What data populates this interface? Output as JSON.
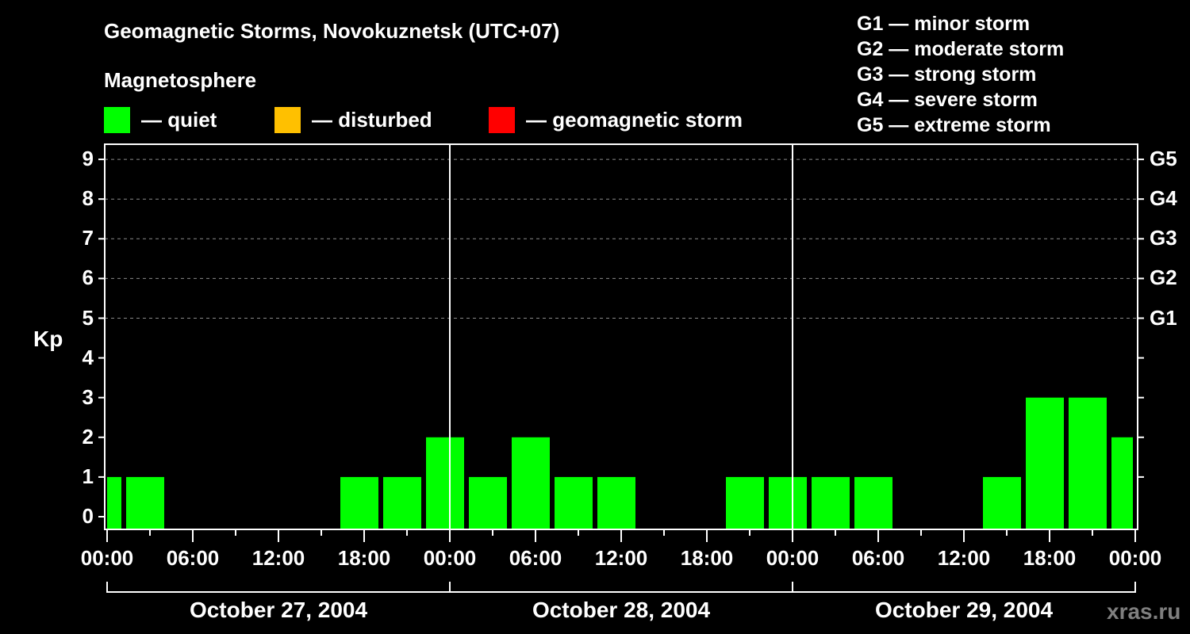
{
  "header": {
    "title": "Geomagnetic Storms, Novokuznetsk (UTC+07)",
    "subtitle": "Magnetosphere"
  },
  "legend": [
    {
      "label": "— quiet",
      "color": "#00ff00"
    },
    {
      "label": "— disturbed",
      "color": "#ffc000"
    },
    {
      "label": "— geomagnetic storm",
      "color": "#ff0000"
    }
  ],
  "g_scale": [
    "G1 — minor storm",
    "G2 — moderate storm",
    "G3 — strong storm",
    "G4 — severe storm",
    "G5 — extreme storm"
  ],
  "watermark": "xras.ru",
  "chart_data": {
    "type": "bar",
    "title": "Geomagnetic Storms, Novokuznetsk (UTC+07)",
    "subtitle": "Magnetosphere",
    "ylabel": "Kp",
    "xlabel": "",
    "ylim": [
      0,
      9
    ],
    "yticks": [
      "0",
      "1",
      "2",
      "3",
      "4",
      "5",
      "6",
      "7",
      "8",
      "9"
    ],
    "right_ticks": [
      {
        "kp": 5,
        "label": "G1"
      },
      {
        "kp": 6,
        "label": "G2"
      },
      {
        "kp": 7,
        "label": "G3"
      },
      {
        "kp": 8,
        "label": "G4"
      },
      {
        "kp": 9,
        "label": "G5"
      }
    ],
    "xticks": [
      "00:00",
      "06:00",
      "12:00",
      "18:00",
      "00:00",
      "06:00",
      "12:00",
      "18:00",
      "00:00",
      "06:00",
      "12:00",
      "18:00",
      "00:00"
    ],
    "dates": [
      "October 27, 2004",
      "October 28, 2004",
      "October 29, 2004"
    ],
    "grid": "dashed horizontal at Kp 5-9",
    "legend_position": "top",
    "bar_interval_hours": 3,
    "series": [
      {
        "name": "Kp",
        "categories": [
          "Oct 26 22:00",
          "Oct 27 01:00",
          "Oct 27 04:00",
          "Oct 27 07:00",
          "Oct 27 10:00",
          "Oct 27 13:00",
          "Oct 27 16:00",
          "Oct 27 19:00",
          "Oct 27 22:00",
          "Oct 28 01:00",
          "Oct 28 04:00",
          "Oct 28 07:00",
          "Oct 28 10:00",
          "Oct 28 13:00",
          "Oct 28 16:00",
          "Oct 28 19:00",
          "Oct 28 22:00",
          "Oct 29 01:00",
          "Oct 29 04:00",
          "Oct 29 07:00",
          "Oct 29 10:00",
          "Oct 29 13:00",
          "Oct 29 16:00",
          "Oct 29 19:00",
          "Oct 29 22:00"
        ],
        "values": [
          1,
          1,
          0,
          0,
          0,
          0,
          1,
          1,
          2,
          1,
          2,
          1,
          1,
          0,
          0,
          1,
          1,
          1,
          1,
          0,
          0,
          1,
          3,
          3,
          2
        ],
        "colors": [
          "quiet"
        ]
      }
    ]
  }
}
